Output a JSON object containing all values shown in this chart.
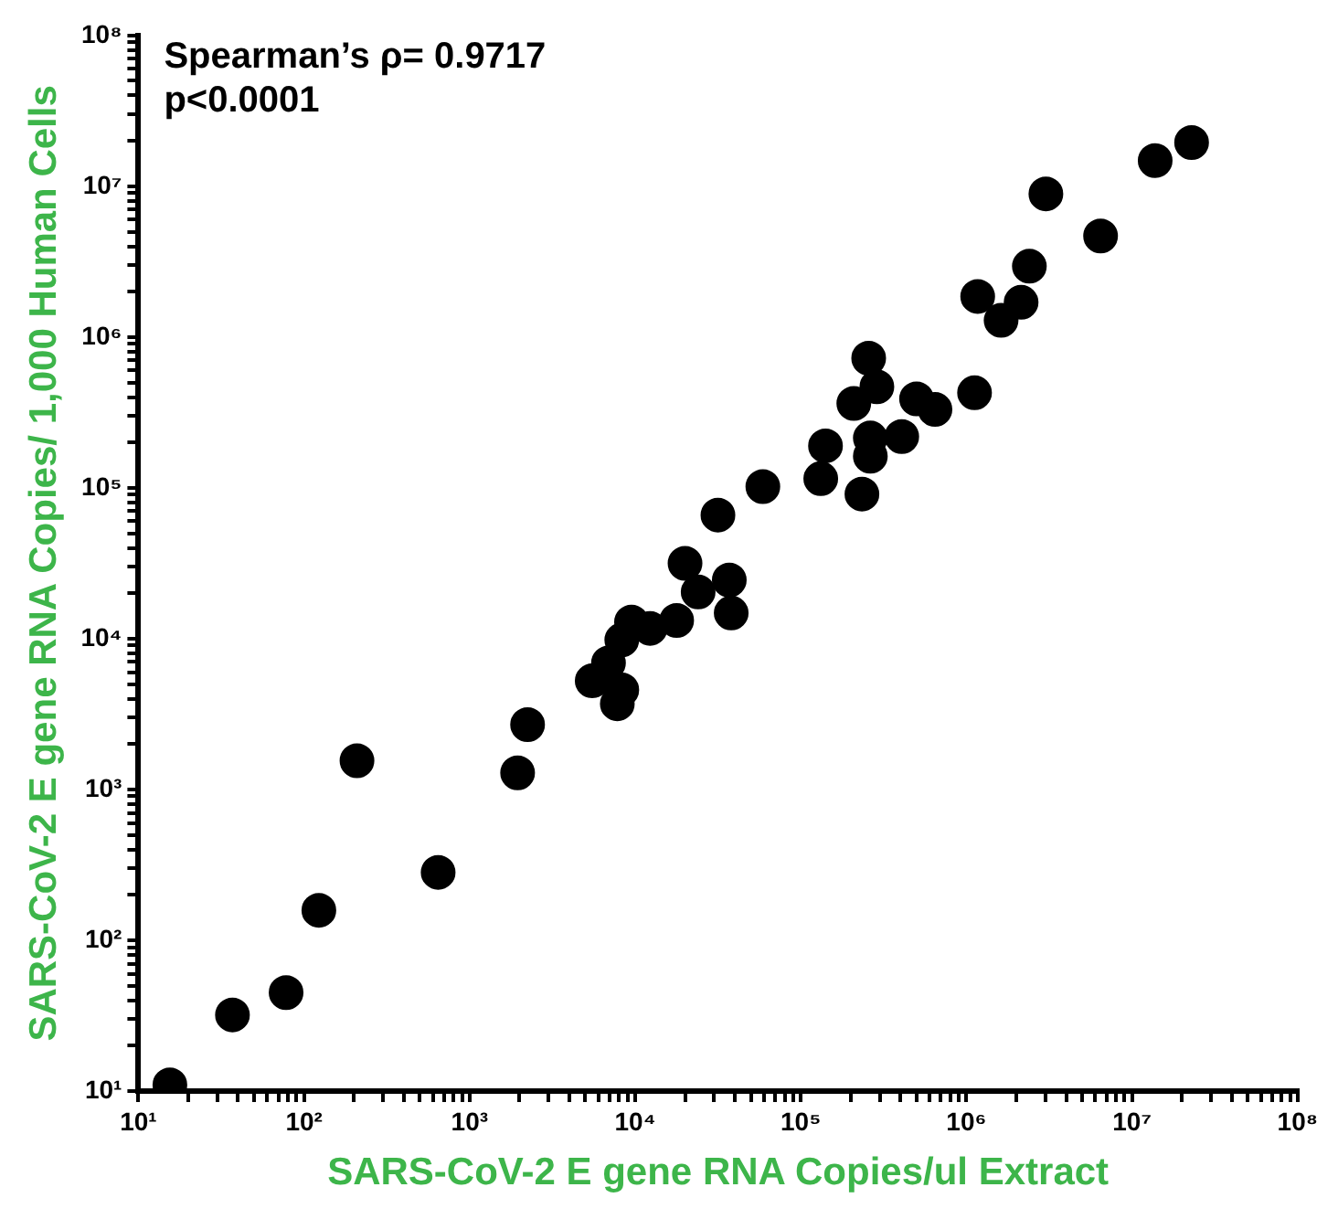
{
  "chart_data": {
    "type": "scatter",
    "xlabel": "SARS-CoV-2 E gene RNA Copies/ul Extract",
    "ylabel": "SARS-CoV-2 E gene RNA Copies/ 1,000 Human Cells",
    "annotations": [
      "Spearman’s ρ= 0.9717",
      "p<0.0001"
    ],
    "log": "xy",
    "marker": "circle",
    "xlim": [
      10,
      100000000
    ],
    "ylim": [
      10,
      100000000
    ],
    "xticks": [
      {
        "value": 10,
        "label": "10¹"
      },
      {
        "value": 20,
        "label": null
      },
      {
        "value": 30,
        "label": null
      },
      {
        "value": 40,
        "label": null
      },
      {
        "value": 50,
        "label": null
      },
      {
        "value": 60,
        "label": null
      },
      {
        "value": 70,
        "label": null
      },
      {
        "value": 80,
        "label": null
      },
      {
        "value": 90,
        "label": null
      },
      {
        "value": 100,
        "label": "10²"
      },
      {
        "value": 200,
        "label": null
      },
      {
        "value": 300,
        "label": null
      },
      {
        "value": 400,
        "label": null
      },
      {
        "value": 500,
        "label": null
      },
      {
        "value": 600,
        "label": null
      },
      {
        "value": 700,
        "label": null
      },
      {
        "value": 800,
        "label": null
      },
      {
        "value": 900,
        "label": null
      },
      {
        "value": 1000,
        "label": "10³"
      },
      {
        "value": 2000,
        "label": null
      },
      {
        "value": 3000,
        "label": null
      },
      {
        "value": 4000,
        "label": null
      },
      {
        "value": 5000,
        "label": null
      },
      {
        "value": 6000,
        "label": null
      },
      {
        "value": 7000,
        "label": null
      },
      {
        "value": 8000,
        "label": null
      },
      {
        "value": 9000,
        "label": null
      },
      {
        "value": 10000,
        "label": "10⁴"
      },
      {
        "value": 20000,
        "label": null
      },
      {
        "value": 30000,
        "label": null
      },
      {
        "value": 40000,
        "label": null
      },
      {
        "value": 50000,
        "label": null
      },
      {
        "value": 60000,
        "label": null
      },
      {
        "value": 70000,
        "label": null
      },
      {
        "value": 80000,
        "label": null
      },
      {
        "value": 90000,
        "label": null
      },
      {
        "value": 100000,
        "label": "10⁵"
      },
      {
        "value": 200000,
        "label": null
      },
      {
        "value": 300000,
        "label": null
      },
      {
        "value": 400000,
        "label": null
      },
      {
        "value": 500000,
        "label": null
      },
      {
        "value": 600000,
        "label": null
      },
      {
        "value": 700000,
        "label": null
      },
      {
        "value": 800000,
        "label": null
      },
      {
        "value": 900000,
        "label": null
      },
      {
        "value": 1000000,
        "label": "10⁶"
      },
      {
        "value": 2000000,
        "label": null
      },
      {
        "value": 3000000,
        "label": null
      },
      {
        "value": 4000000,
        "label": null
      },
      {
        "value": 5000000,
        "label": null
      },
      {
        "value": 6000000,
        "label": null
      },
      {
        "value": 7000000,
        "label": null
      },
      {
        "value": 8000000,
        "label": null
      },
      {
        "value": 9000000,
        "label": null
      },
      {
        "value": 10000000,
        "label": "10⁷"
      },
      {
        "value": 20000000,
        "label": null
      },
      {
        "value": 30000000,
        "label": null
      },
      {
        "value": 40000000,
        "label": null
      },
      {
        "value": 50000000,
        "label": null
      },
      {
        "value": 60000000,
        "label": null
      },
      {
        "value": 70000000,
        "label": null
      },
      {
        "value": 80000000,
        "label": null
      },
      {
        "value": 90000000,
        "label": null
      },
      {
        "value": 100000000,
        "label": "10⁸"
      }
    ],
    "yticks": [
      {
        "value": 10,
        "label": "10¹"
      },
      {
        "value": 20,
        "label": null
      },
      {
        "value": 30,
        "label": null
      },
      {
        "value": 40,
        "label": null
      },
      {
        "value": 50,
        "label": null
      },
      {
        "value": 60,
        "label": null
      },
      {
        "value": 70,
        "label": null
      },
      {
        "value": 80,
        "label": null
      },
      {
        "value": 90,
        "label": null
      },
      {
        "value": 100,
        "label": "10²"
      },
      {
        "value": 200,
        "label": null
      },
      {
        "value": 300,
        "label": null
      },
      {
        "value": 400,
        "label": null
      },
      {
        "value": 500,
        "label": null
      },
      {
        "value": 600,
        "label": null
      },
      {
        "value": 700,
        "label": null
      },
      {
        "value": 800,
        "label": null
      },
      {
        "value": 900,
        "label": null
      },
      {
        "value": 1000,
        "label": "10³"
      },
      {
        "value": 2000,
        "label": null
      },
      {
        "value": 3000,
        "label": null
      },
      {
        "value": 4000,
        "label": null
      },
      {
        "value": 5000,
        "label": null
      },
      {
        "value": 6000,
        "label": null
      },
      {
        "value": 7000,
        "label": null
      },
      {
        "value": 8000,
        "label": null
      },
      {
        "value": 9000,
        "label": null
      },
      {
        "value": 10000,
        "label": "10⁴"
      },
      {
        "value": 20000,
        "label": null
      },
      {
        "value": 30000,
        "label": null
      },
      {
        "value": 40000,
        "label": null
      },
      {
        "value": 50000,
        "label": null
      },
      {
        "value": 60000,
        "label": null
      },
      {
        "value": 70000,
        "label": null
      },
      {
        "value": 80000,
        "label": null
      },
      {
        "value": 90000,
        "label": null
      },
      {
        "value": 100000,
        "label": "10⁵"
      },
      {
        "value": 200000,
        "label": null
      },
      {
        "value": 300000,
        "label": null
      },
      {
        "value": 400000,
        "label": null
      },
      {
        "value": 500000,
        "label": null
      },
      {
        "value": 600000,
        "label": null
      },
      {
        "value": 700000,
        "label": null
      },
      {
        "value": 800000,
        "label": null
      },
      {
        "value": 900000,
        "label": null
      },
      {
        "value": 1000000,
        "label": "10⁶"
      },
      {
        "value": 2000000,
        "label": null
      },
      {
        "value": 3000000,
        "label": null
      },
      {
        "value": 4000000,
        "label": null
      },
      {
        "value": 5000000,
        "label": null
      },
      {
        "value": 6000000,
        "label": null
      },
      {
        "value": 7000000,
        "label": null
      },
      {
        "value": 8000000,
        "label": null
      },
      {
        "value": 9000000,
        "label": null
      },
      {
        "value": 10000000,
        "label": "10⁷"
      },
      {
        "value": 20000000,
        "label": null
      },
      {
        "value": 30000000,
        "label": null
      },
      {
        "value": 40000000,
        "label": null
      },
      {
        "value": 50000000,
        "label": null
      },
      {
        "value": 60000000,
        "label": null
      },
      {
        "value": 70000000,
        "label": null
      },
      {
        "value": 80000000,
        "label": null
      },
      {
        "value": 90000000,
        "label": null
      },
      {
        "value": 100000000,
        "label": "10⁸"
      }
    ],
    "x": [
      15.5,
      37,
      78,
      123,
      209,
      646,
      1950,
      2240,
      5500,
      6900,
      8300,
      7800,
      8300,
      9500,
      12300,
      17800,
      20000,
      24000,
      37000,
      38000,
      31600,
      59000,
      132000,
      141000,
      234000,
      263000,
      263000,
      257000,
      288000,
      209000,
      407000,
      500000,
      646000,
      1120000,
      1170000,
      1620000,
      2140000,
      2400000,
      3020000,
      6460000,
      13800000,
      22900000
    ],
    "series": [
      {
        "color": "#000000",
        "values": [
          11,
          32,
          45,
          158,
          1550,
          282,
          1290,
          2690,
          5250,
          6900,
          4570,
          3700,
          9800,
          12900,
          11700,
          13200,
          31600,
          20400,
          24500,
          14800,
          66000,
          102000,
          115000,
          190000,
          91000,
          162000,
          214000,
          724000,
          468000,
          363000,
          219000,
          389000,
          331000,
          427000,
          1860000,
          1290000,
          1700000,
          2950000,
          8900000,
          4680000,
          14800000,
          19500000
        ]
      }
    ]
  }
}
